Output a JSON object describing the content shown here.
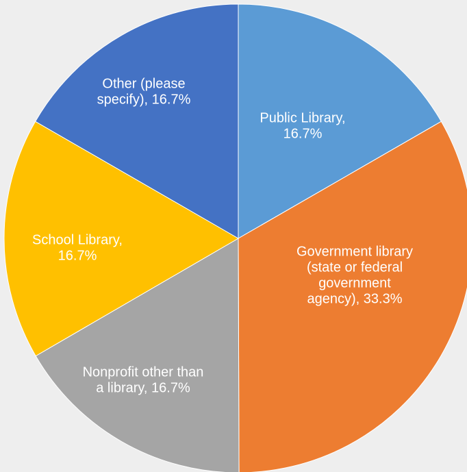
{
  "chart_data": {
    "type": "pie",
    "title": "",
    "slices": [
      {
        "name": "Public Library",
        "percent": 16.7,
        "label_lines": [
          "Public Library,",
          "16.7%"
        ],
        "color": "#5b9bd5"
      },
      {
        "name": "Government library (state or federal government agency)",
        "percent": 33.3,
        "label_lines": [
          "Government library",
          "(state or federal",
          "government",
          "agency), 33.3%"
        ],
        "color": "#ed7d31"
      },
      {
        "name": "Nonprofit other than a library",
        "percent": 16.7,
        "label_lines": [
          "Nonprofit other than",
          "a library, 16.7%"
        ],
        "color": "#a5a5a5"
      },
      {
        "name": "School Library",
        "percent": 16.7,
        "label_lines": [
          "School Library,",
          "16.7%"
        ],
        "color": "#ffc000"
      },
      {
        "name": "Other (please specify)",
        "percent": 16.7,
        "label_lines": [
          "Other (please",
          "specify), 16.7%"
        ],
        "color": "#4472c4"
      }
    ],
    "start_angle": "12 o'clock",
    "direction": "clockwise",
    "legend": "none",
    "data_labels": "inside, category name and percentage"
  }
}
